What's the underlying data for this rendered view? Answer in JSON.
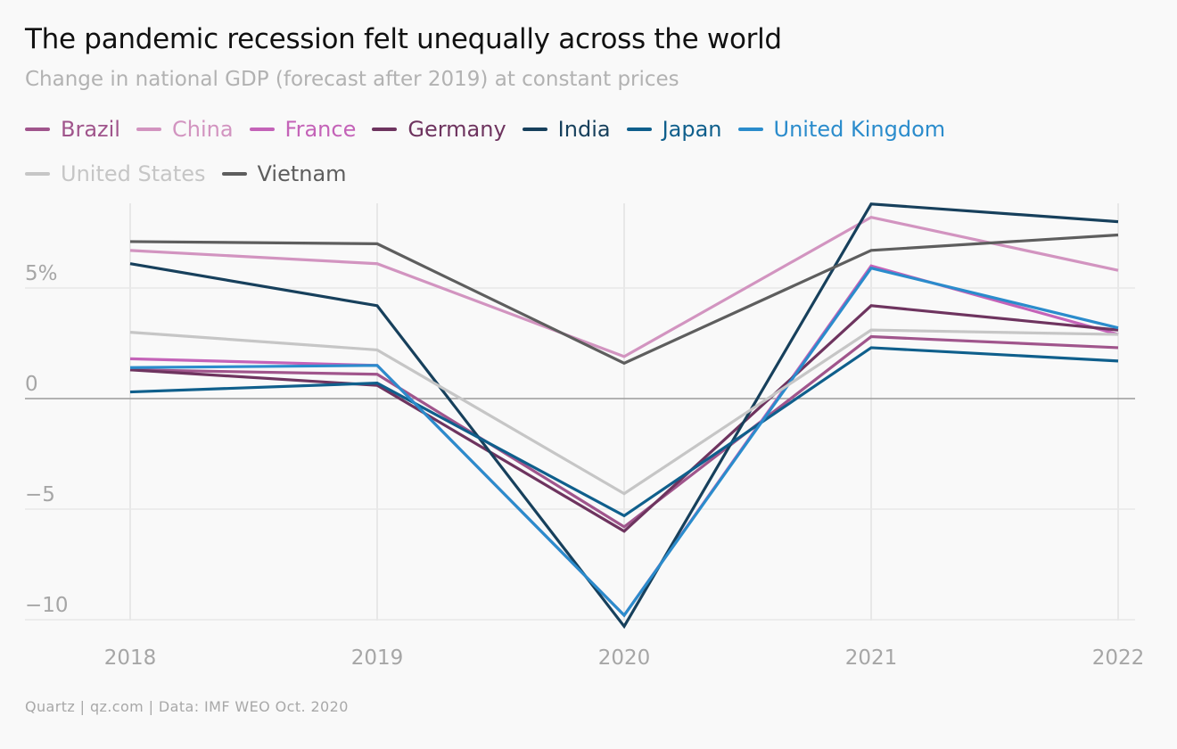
{
  "title": "The pandemic recession felt unequally across the world",
  "subtitle": "Change in national GDP (forecast after 2019) at constant prices",
  "source": "Quartz | qz.com | Data: IMF WEO Oct. 2020",
  "chart_data": {
    "type": "line",
    "title": "The pandemic recession felt unequally across the world",
    "subtitle": "Change in national GDP (forecast after 2019) at constant prices",
    "x": [
      "2018",
      "2019",
      "2020",
      "2021",
      "2022"
    ],
    "ylim": [
      -10.3,
      8.8
    ],
    "yticks": [
      {
        "value": 5,
        "label": "5%"
      },
      {
        "value": 0,
        "label": "0"
      },
      {
        "value": -5,
        "label": "−5"
      },
      {
        "value": -10,
        "label": "−10"
      }
    ],
    "grid": true,
    "legend_position": "top-left",
    "series": [
      {
        "name": "Brazil",
        "color": "#a0558c",
        "values": [
          1.3,
          1.1,
          -5.8,
          2.8,
          2.3
        ]
      },
      {
        "name": "China",
        "color": "#d294c0",
        "values": [
          6.7,
          6.1,
          1.9,
          8.2,
          5.8
        ]
      },
      {
        "name": "France",
        "color": "#c463b8",
        "values": [
          1.8,
          1.5,
          -9.8,
          6.0,
          2.9
        ]
      },
      {
        "name": "Germany",
        "color": "#6e345f",
        "values": [
          1.3,
          0.6,
          -6.0,
          4.2,
          3.1
        ]
      },
      {
        "name": "India",
        "color": "#17405c",
        "values": [
          6.1,
          4.2,
          -10.3,
          8.8,
          8.0
        ]
      },
      {
        "name": "Japan",
        "color": "#0f5f8c",
        "values": [
          0.3,
          0.7,
          -5.3,
          2.3,
          1.7
        ]
      },
      {
        "name": "United Kingdom",
        "color": "#2b8ccc",
        "values": [
          1.4,
          1.5,
          -9.8,
          5.9,
          3.2
        ]
      },
      {
        "name": "United States",
        "color": "#c6c6c6",
        "values": [
          3.0,
          2.2,
          -4.3,
          3.1,
          2.9
        ]
      },
      {
        "name": "Vietnam",
        "color": "#5e5e5e",
        "values": [
          7.1,
          7.0,
          1.6,
          6.7,
          7.4
        ]
      }
    ]
  }
}
